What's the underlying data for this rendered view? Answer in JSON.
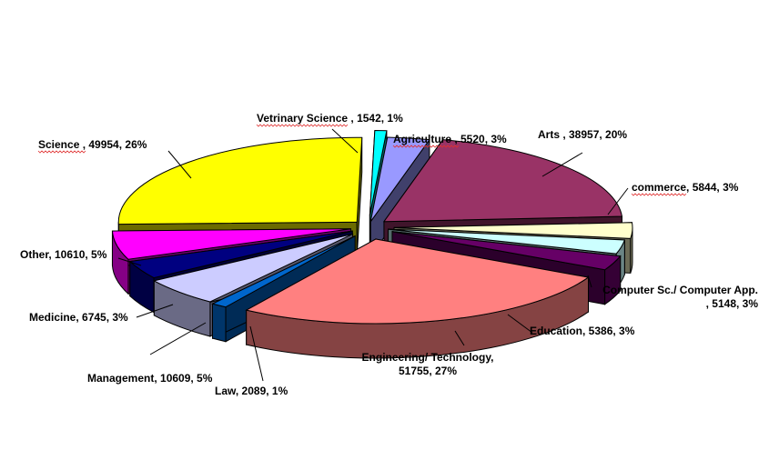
{
  "chart_data": {
    "type": "pie",
    "style": "3d-exploded",
    "title": "",
    "slices": [
      {
        "label": "Agriculture",
        "value": 5520,
        "percent": "3%",
        "color": "#9999ff"
      },
      {
        "label": "Arts",
        "value": 38957,
        "percent": "20%",
        "color": "#993366"
      },
      {
        "label": "commerce",
        "value": 5844,
        "percent": "3%",
        "color": "#ffffcc"
      },
      {
        "label": "Computer Sc./ Computer App.",
        "value": 5148,
        "percent": "3%",
        "color": "#ccffff"
      },
      {
        "label": "Education",
        "value": 5386,
        "percent": "3%",
        "color": "#660066"
      },
      {
        "label": "Engineering/ Technology",
        "value": 51755,
        "percent": "27%",
        "color": "#ff8080"
      },
      {
        "label": "Law",
        "value": 2089,
        "percent": "1%",
        "color": "#0066cc"
      },
      {
        "label": "Management",
        "value": 10609,
        "percent": "5%",
        "color": "#ccccff"
      },
      {
        "label": "Medicine",
        "value": 6745,
        "percent": "3%",
        "color": "#000080"
      },
      {
        "label": "Other",
        "value": 10610,
        "percent": "5%",
        "color": "#ff00ff"
      },
      {
        "label": "Science",
        "value": 49954,
        "percent": "26%",
        "color": "#ffff00"
      },
      {
        "label": "Vetrinary Science",
        "value": 1542,
        "percent": "1%",
        "color": "#00ffff"
      }
    ],
    "labels": [
      {
        "lines": [
          "Agriculture , 5520, 3%"
        ]
      },
      {
        "lines": [
          "Arts , 38957, 20%"
        ]
      },
      {
        "lines": [
          "commerce, 5844, 3%"
        ]
      },
      {
        "lines": [
          "Computer Sc./ Computer App.",
          ", 5148, 3%"
        ]
      },
      {
        "lines": [
          "Education, 5386, 3%"
        ]
      },
      {
        "lines": [
          "Engineering/ Technology,",
          "51755, 27%"
        ]
      },
      {
        "lines": [
          "Law, 2089, 1%"
        ]
      },
      {
        "lines": [
          "Management, 10609, 5%"
        ]
      },
      {
        "lines": [
          "Medicine, 6745, 3%"
        ]
      },
      {
        "lines": [
          "Other, 10610, 5%"
        ]
      },
      {
        "lines": [
          "Science , 49954, 26%"
        ]
      },
      {
        "lines": [
          "Vetrinary Science , 1542, 1%"
        ]
      }
    ],
    "legend": "none",
    "grid": false
  }
}
